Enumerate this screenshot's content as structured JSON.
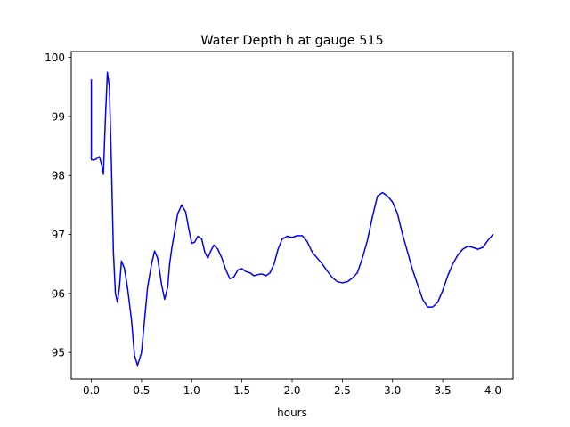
{
  "chart_data": {
    "type": "line",
    "title": "Water Depth h at gauge 515",
    "xlabel": "hours",
    "ylabel": "",
    "xlim": [
      -0.2,
      4.2
    ],
    "ylim": [
      94.55,
      100.1
    ],
    "xticks": [
      0.0,
      0.5,
      1.0,
      1.5,
      2.0,
      2.5,
      3.0,
      3.5,
      4.0
    ],
    "xtick_labels": [
      "0.0",
      "0.5",
      "1.0",
      "1.5",
      "2.0",
      "2.5",
      "3.0",
      "3.5",
      "4.0"
    ],
    "yticks": [
      95,
      96,
      97,
      98,
      99,
      100
    ],
    "ytick_labels": [
      "95",
      "96",
      "97",
      "98",
      "99",
      "100"
    ],
    "grid": false,
    "series": [
      {
        "color": "#0000ff",
        "x": [
          0.0,
          0.0,
          0.0,
          0.02,
          0.05,
          0.08,
          0.1,
          0.12,
          0.14,
          0.16,
          0.18,
          0.2,
          0.22,
          0.24,
          0.26,
          0.28,
          0.3,
          0.33,
          0.36,
          0.4,
          0.43,
          0.46,
          0.5,
          0.53,
          0.56,
          0.6,
          0.63,
          0.66,
          0.7,
          0.73,
          0.76,
          0.78,
          0.8,
          0.83,
          0.86,
          0.9,
          0.94,
          0.97,
          1.0,
          1.03,
          1.06,
          1.1,
          1.13,
          1.16,
          1.19,
          1.22,
          1.26,
          1.3,
          1.34,
          1.38,
          1.42,
          1.46,
          1.5,
          1.54,
          1.58,
          1.62,
          1.66,
          1.7,
          1.74,
          1.78,
          1.82,
          1.86,
          1.9,
          1.95,
          2.0,
          2.05,
          2.1,
          2.15,
          2.2,
          2.25,
          2.3,
          2.35,
          2.4,
          2.45,
          2.5,
          2.55,
          2.6,
          2.65,
          2.7,
          2.75,
          2.8,
          2.85,
          2.9,
          2.95,
          3.0,
          3.05,
          3.1,
          3.15,
          3.2,
          3.25,
          3.3,
          3.35,
          3.4,
          3.45,
          3.5,
          3.55,
          3.6,
          3.65,
          3.7,
          3.75,
          3.8,
          3.85,
          3.9,
          3.95,
          4.0
        ],
        "y": [
          99.62,
          98.3,
          98.27,
          98.26,
          98.28,
          98.32,
          98.2,
          98.02,
          98.95,
          99.75,
          99.5,
          98.2,
          96.7,
          96.0,
          95.85,
          96.1,
          96.55,
          96.42,
          96.1,
          95.55,
          94.95,
          94.78,
          95.0,
          95.55,
          96.1,
          96.5,
          96.72,
          96.6,
          96.15,
          95.9,
          96.1,
          96.5,
          96.75,
          97.05,
          97.35,
          97.5,
          97.38,
          97.1,
          96.85,
          96.87,
          96.97,
          96.92,
          96.7,
          96.6,
          96.72,
          96.82,
          96.75,
          96.6,
          96.4,
          96.25,
          96.28,
          96.4,
          96.42,
          96.37,
          96.35,
          96.3,
          96.32,
          96.33,
          96.3,
          96.35,
          96.5,
          96.75,
          96.92,
          96.97,
          96.95,
          96.98,
          96.98,
          96.88,
          96.7,
          96.6,
          96.5,
          96.38,
          96.27,
          96.2,
          96.18,
          96.2,
          96.26,
          96.35,
          96.6,
          96.9,
          97.3,
          97.65,
          97.71,
          97.65,
          97.55,
          97.35,
          97.0,
          96.7,
          96.4,
          96.15,
          95.9,
          95.77,
          95.77,
          95.85,
          96.05,
          96.3,
          96.5,
          96.65,
          96.75,
          96.8,
          96.78,
          96.75,
          96.78,
          96.9,
          97.0
        ]
      }
    ]
  }
}
